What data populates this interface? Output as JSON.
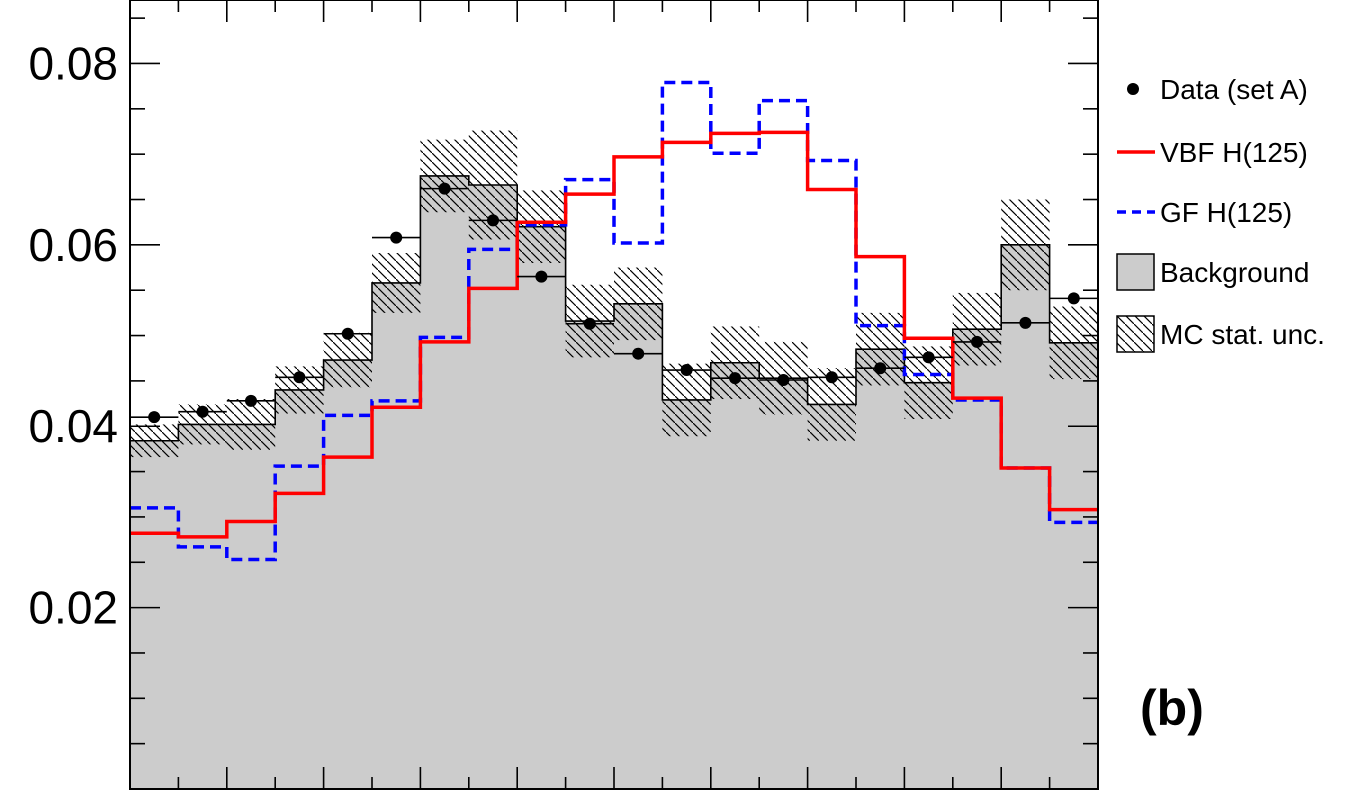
{
  "chart_data": {
    "type": "bar",
    "panel_label": "(b)",
    "n_bins": 20,
    "ylim": [
      0,
      0.087
    ],
    "y_ticks": [
      0.02,
      0.04,
      0.06,
      0.08
    ],
    "y_tick_labels": [
      "0.02",
      "0.04",
      "0.06",
      "0.08"
    ],
    "legend_position": "right",
    "series": [
      {
        "name": "Data (set A)",
        "style": "points",
        "color": "#000000",
        "values": [
          0.041,
          0.0416,
          0.0428,
          0.0454,
          0.0502,
          0.0608,
          0.0662,
          0.0627,
          0.0565,
          0.0513,
          0.048,
          0.0462,
          0.0453,
          0.0451,
          0.0454,
          0.0464,
          0.0476,
          0.0493,
          0.0514,
          0.0541
        ]
      },
      {
        "name": "VBF H(125)",
        "style": "solid-step",
        "color": "#ff0000",
        "values": [
          0.0282,
          0.0278,
          0.0295,
          0.0326,
          0.0366,
          0.0421,
          0.0493,
          0.0552,
          0.0625,
          0.0656,
          0.0697,
          0.0713,
          0.0723,
          0.0724,
          0.0661,
          0.0587,
          0.0497,
          0.0431,
          0.0354,
          0.0308
        ]
      },
      {
        "name": "GF H(125)",
        "style": "dashed-step",
        "color": "#0000ff",
        "values": [
          0.031,
          0.0267,
          0.0253,
          0.0356,
          0.0412,
          0.0428,
          0.0498,
          0.0595,
          0.0622,
          0.0672,
          0.0602,
          0.0779,
          0.0701,
          0.0759,
          0.0693,
          0.0511,
          0.0457,
          0.0429,
          0.0354,
          0.0294
        ]
      },
      {
        "name": "Background",
        "style": "filled-step",
        "color": "#cccccc",
        "values": [
          0.0384,
          0.0402,
          0.0402,
          0.044,
          0.0473,
          0.0558,
          0.0676,
          0.0666,
          0.062,
          0.0516,
          0.0535,
          0.0429,
          0.047,
          0.0453,
          0.0424,
          0.0485,
          0.0448,
          0.0507,
          0.06,
          0.0492
        ]
      },
      {
        "name": "MC stat. unc.",
        "style": "hatched-band",
        "color": "#000000",
        "uncertainty": [
          0.0018,
          0.0022,
          0.0028,
          0.0026,
          0.003,
          0.0033,
          0.004,
          0.006,
          0.004,
          0.004,
          0.004,
          0.004,
          0.004,
          0.004,
          0.004,
          0.004,
          0.004,
          0.004,
          0.005,
          0.004
        ]
      }
    ]
  }
}
